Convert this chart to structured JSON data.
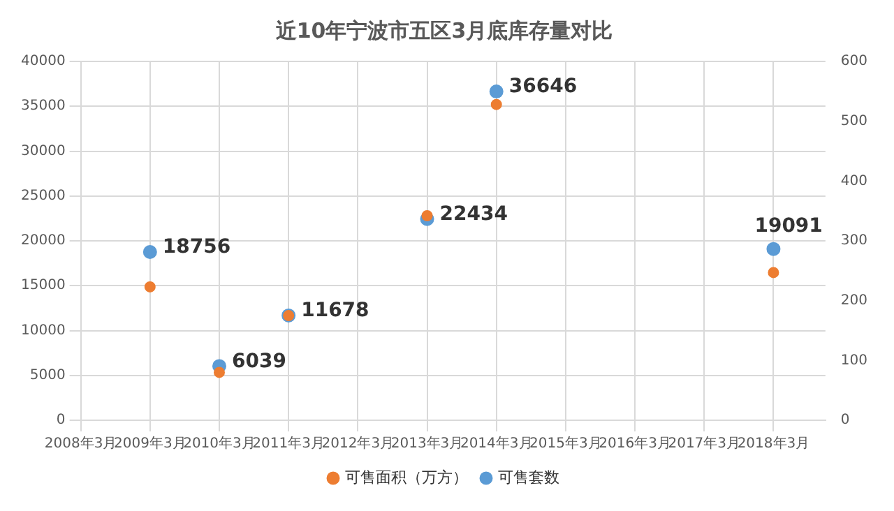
{
  "chart_data": {
    "type": "scatter",
    "title": "近10年宁波市五区3月底库存量对比",
    "x": [
      "2009-03",
      "2010-03",
      "2011-03",
      "2013-03",
      "2014-03",
      "2018-03"
    ],
    "series": [
      {
        "name": "可售套数",
        "color": "#5b9bd5",
        "values": [
          18756,
          6039,
          11678,
          22434,
          36646,
          19091
        ],
        "value_labels": [
          "18756",
          "6039",
          "11678",
          "22434",
          "36646",
          "19091"
        ]
      },
      {
        "name": "可售面积（万方）",
        "color": "#ed7d31",
        "axis": "y2",
        "values": [
          223,
          80,
          175,
          342,
          528,
          247
        ]
      }
    ],
    "xlim": [
      "2008-03",
      "2018-12"
    ],
    "xticks": [
      {
        "value": "2008-03",
        "label": "2008年3月"
      },
      {
        "value": "2009-03",
        "label": "2009年3月"
      },
      {
        "value": "2010-03",
        "label": "2010年3月"
      },
      {
        "value": "2011-03",
        "label": "2011年3月"
      },
      {
        "value": "2012-03",
        "label": "2012年3月"
      },
      {
        "value": "2013-03",
        "label": "2013年3月"
      },
      {
        "value": "2014-03",
        "label": "2014年3月"
      },
      {
        "value": "2015-03",
        "label": "2015年3月"
      },
      {
        "value": "2016-03",
        "label": "2016年3月"
      },
      {
        "value": "2017-03",
        "label": "2017年3月"
      },
      {
        "value": "2018-03",
        "label": "2018年3月"
      }
    ],
    "ylim": [
      0,
      40000
    ],
    "yticks": [
      0,
      5000,
      10000,
      15000,
      20000,
      25000,
      30000,
      35000,
      40000
    ],
    "y2lim": [
      0,
      600
    ],
    "y2ticks": [
      0,
      100,
      200,
      300,
      400,
      500,
      600
    ],
    "grid": true,
    "legend": "bottom",
    "marker": "circle"
  }
}
